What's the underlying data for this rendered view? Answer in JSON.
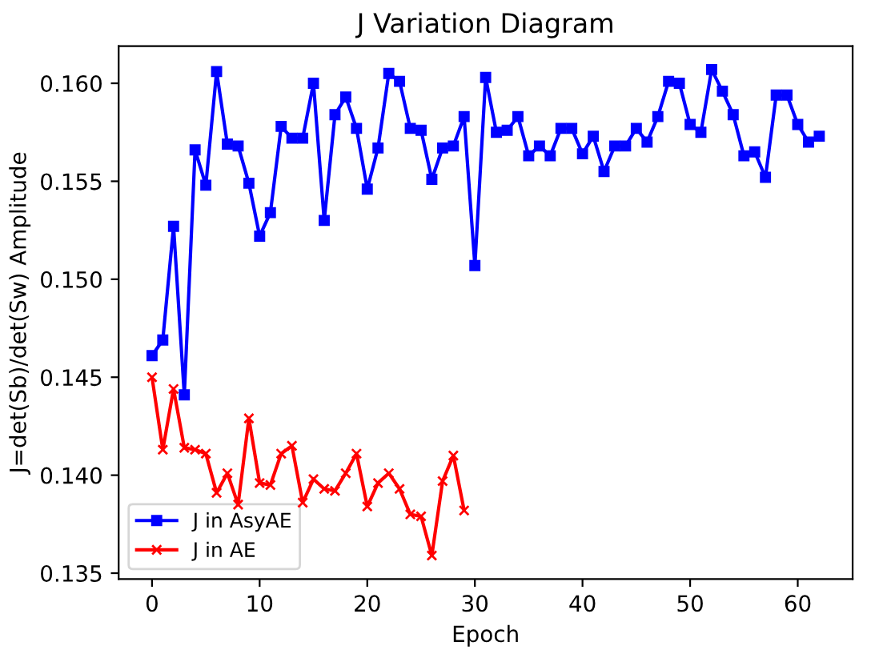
{
  "chart_data": {
    "type": "line",
    "title": "J Variation Diagram",
    "xlabel": "Epoch",
    "ylabel": "J=det(Sb)/det(Sw) Amplitude",
    "xlim": [
      -3.1,
      65.1
    ],
    "xticks": [
      0,
      10,
      20,
      30,
      40,
      50,
      60
    ],
    "ylim": [
      0.1347,
      0.1619
    ],
    "yticks": [
      {
        "value": 0.135,
        "label": "0.135"
      },
      {
        "value": 0.14,
        "label": "0.140"
      },
      {
        "value": 0.145,
        "label": "0.145"
      },
      {
        "value": 0.15,
        "label": "0.150"
      },
      {
        "value": 0.155,
        "label": "0.155"
      },
      {
        "value": 0.16,
        "label": "0.160"
      }
    ],
    "grid": false,
    "legend": "bottom left",
    "line_style": "solid",
    "series": [
      {
        "name": "J in AsyAE",
        "color": "#0000ff",
        "marker": "square",
        "x": [
          0,
          1,
          2,
          3,
          4,
          5,
          6,
          7,
          8,
          9,
          10,
          11,
          12,
          13,
          14,
          15,
          16,
          17,
          18,
          19,
          20,
          21,
          22,
          23,
          24,
          25,
          26,
          27,
          28,
          29,
          30,
          31,
          32,
          33,
          34,
          35,
          36,
          37,
          38,
          39,
          40,
          41,
          42,
          43,
          44,
          45,
          46,
          47,
          48,
          49,
          50,
          51,
          52,
          53,
          54,
          55,
          56,
          57,
          58,
          59,
          60,
          61,
          62
        ],
        "values": [
          0.1461,
          0.1469,
          0.1527,
          0.1441,
          0.1566,
          0.1548,
          0.1606,
          0.1569,
          0.1568,
          0.1549,
          0.1522,
          0.1534,
          0.1578,
          0.1572,
          0.1572,
          0.16,
          0.153,
          0.1584,
          0.1593,
          0.1577,
          0.1546,
          0.1567,
          0.1605,
          0.1601,
          0.1577,
          0.1576,
          0.1551,
          0.1567,
          0.1568,
          0.1583,
          0.1507,
          0.1603,
          0.1575,
          0.1576,
          0.1583,
          0.1563,
          0.1568,
          0.1563,
          0.1577,
          0.1577,
          0.1564,
          0.1573,
          0.1555,
          0.1568,
          0.1568,
          0.1577,
          0.157,
          0.1583,
          0.1601,
          0.16,
          0.1579,
          0.1575,
          0.1607,
          0.1596,
          0.1584,
          0.1563,
          0.1565,
          0.1552,
          0.1594,
          0.1594,
          0.1579,
          0.157,
          0.1573
        ]
      },
      {
        "name": "J in AE",
        "color": "#ff0000",
        "marker": "cross",
        "x": [
          0,
          1,
          2,
          3,
          4,
          5,
          6,
          7,
          8,
          9,
          10,
          11,
          12,
          13,
          14,
          15,
          16,
          17,
          18,
          19,
          20,
          21,
          22,
          23,
          24,
          25,
          26,
          27,
          28,
          29
        ],
        "values": [
          0.145,
          0.1413,
          0.1444,
          0.1414,
          0.1413,
          0.1411,
          0.1391,
          0.1401,
          0.1385,
          0.1429,
          0.1396,
          0.1395,
          0.1411,
          0.1415,
          0.1386,
          0.1398,
          0.1393,
          0.1392,
          0.1401,
          0.1411,
          0.1384,
          0.1396,
          0.1401,
          0.1393,
          0.138,
          0.1379,
          0.1359,
          0.1397,
          0.141,
          0.1382
        ]
      }
    ]
  }
}
